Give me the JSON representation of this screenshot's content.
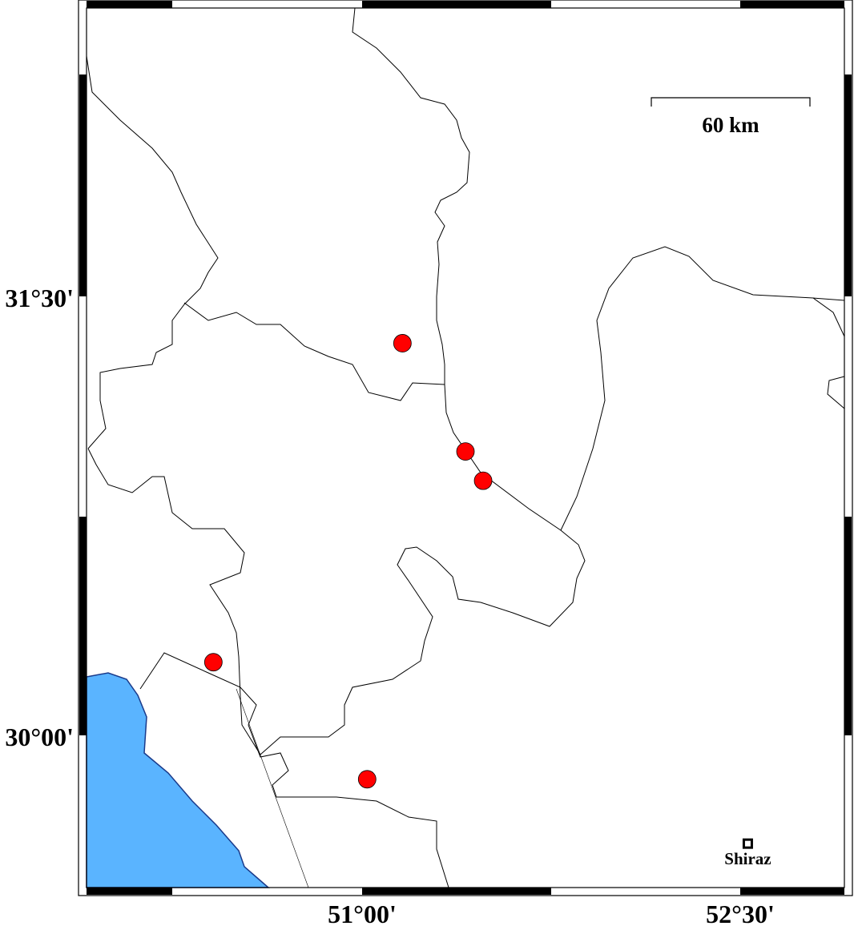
{
  "map": {
    "bounds": {
      "lon_min": 49.91,
      "lon_max": 52.91,
      "lat_min": 29.48,
      "lat_max": 32.48
    },
    "lon_ticks": [
      {
        "value": 51.0,
        "label": "51°00'"
      },
      {
        "value": 52.5,
        "label": "52°30'"
      }
    ],
    "lat_ticks": [
      {
        "value": 31.5,
        "label": "31°30'"
      },
      {
        "value": 30.0,
        "label": "30°00'"
      }
    ],
    "scale_bar": {
      "label": "60 km",
      "length_km": 60
    },
    "cities": [
      {
        "name": "Shiraz",
        "lon": 52.53,
        "lat": 29.63
      }
    ],
    "events": [
      {
        "lon": 51.16,
        "lat": 31.34
      },
      {
        "lon": 51.41,
        "lat": 30.97
      },
      {
        "lon": 51.48,
        "lat": 30.87
      },
      {
        "lon": 50.41,
        "lat": 30.25
      },
      {
        "lon": 51.02,
        "lat": 29.85
      }
    ],
    "colors": {
      "sea": "#5ab4ff",
      "coast": "#1a3a8a",
      "event": "#ff0000",
      "boundary": "#000000"
    }
  }
}
